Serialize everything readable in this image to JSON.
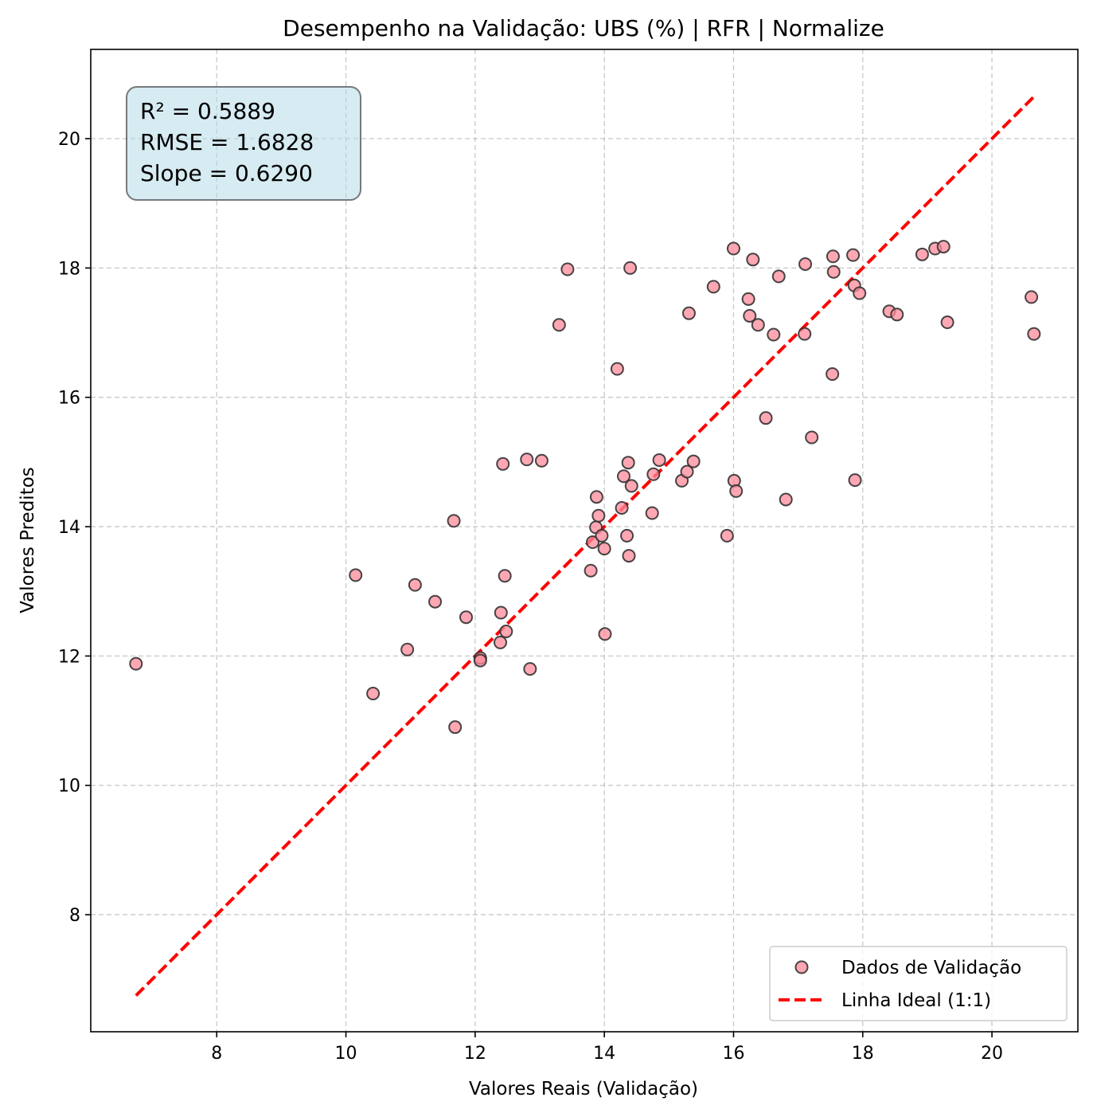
{
  "chart_data": {
    "type": "scatter",
    "title": "Desempenho na Validação: UBS (%) | RFR | Normalize",
    "xlabel": "Valores Reais (Validação)",
    "ylabel": "Valores Preditos",
    "xlim": [
      6.05,
      21.33
    ],
    "ylim": [
      6.19,
      21.38
    ],
    "xticks": [
      8,
      10,
      12,
      14,
      16,
      18,
      20
    ],
    "yticks": [
      8,
      10,
      12,
      14,
      16,
      18,
      20
    ],
    "grid": true,
    "legend_position": "lower-right",
    "stats_box": {
      "lines": [
        "R² = 0.5889",
        "RMSE = 1.6828",
        "Slope = 0.6290"
      ],
      "fill_color": "#add8e6"
    },
    "series": [
      {
        "name": "Dados de Validação",
        "kind": "scatter",
        "color": "#ff8a9a",
        "edge_color": "#333333",
        "points": [
          [
            6.75,
            11.88
          ],
          [
            10.15,
            13.25
          ],
          [
            10.42,
            11.42
          ],
          [
            10.95,
            12.1
          ],
          [
            11.07,
            13.1
          ],
          [
            11.38,
            12.84
          ],
          [
            11.67,
            14.09
          ],
          [
            11.69,
            10.9
          ],
          [
            11.86,
            12.6
          ],
          [
            12.08,
            11.97
          ],
          [
            12.08,
            11.93
          ],
          [
            12.39,
            12.21
          ],
          [
            12.4,
            12.67
          ],
          [
            12.43,
            14.97
          ],
          [
            12.46,
            13.24
          ],
          [
            12.48,
            12.38
          ],
          [
            12.8,
            15.04
          ],
          [
            12.85,
            11.8
          ],
          [
            13.03,
            15.02
          ],
          [
            13.3,
            17.12
          ],
          [
            13.43,
            17.98
          ],
          [
            13.79,
            13.32
          ],
          [
            13.82,
            13.76
          ],
          [
            13.87,
            13.99
          ],
          [
            13.88,
            14.46
          ],
          [
            13.91,
            14.17
          ],
          [
            13.96,
            13.86
          ],
          [
            14.0,
            13.66
          ],
          [
            14.01,
            12.34
          ],
          [
            14.2,
            16.44
          ],
          [
            14.27,
            14.29
          ],
          [
            14.3,
            14.78
          ],
          [
            14.35,
            13.86
          ],
          [
            14.37,
            14.99
          ],
          [
            14.38,
            13.55
          ],
          [
            14.4,
            18.0
          ],
          [
            14.42,
            14.63
          ],
          [
            14.74,
            14.21
          ],
          [
            14.76,
            14.81
          ],
          [
            14.85,
            15.03
          ],
          [
            15.2,
            14.71
          ],
          [
            15.28,
            14.85
          ],
          [
            15.31,
            17.3
          ],
          [
            15.38,
            15.01
          ],
          [
            15.69,
            17.71
          ],
          [
            15.9,
            13.86
          ],
          [
            16.0,
            18.3
          ],
          [
            16.01,
            14.71
          ],
          [
            16.04,
            14.55
          ],
          [
            16.23,
            17.52
          ],
          [
            16.25,
            17.26
          ],
          [
            16.3,
            18.13
          ],
          [
            16.38,
            17.12
          ],
          [
            16.5,
            15.68
          ],
          [
            16.62,
            16.97
          ],
          [
            16.7,
            17.87
          ],
          [
            16.81,
            14.42
          ],
          [
            17.1,
            16.98
          ],
          [
            17.11,
            18.06
          ],
          [
            17.21,
            15.38
          ],
          [
            17.53,
            16.36
          ],
          [
            17.54,
            18.18
          ],
          [
            17.55,
            17.94
          ],
          [
            17.85,
            18.2
          ],
          [
            17.87,
            17.73
          ],
          [
            17.88,
            14.72
          ],
          [
            17.95,
            17.61
          ],
          [
            18.41,
            17.33
          ],
          [
            18.53,
            17.28
          ],
          [
            18.92,
            18.21
          ],
          [
            19.12,
            18.3
          ],
          [
            19.25,
            18.33
          ],
          [
            19.31,
            17.16
          ],
          [
            20.61,
            17.55
          ],
          [
            20.65,
            16.98
          ]
        ]
      },
      {
        "name": "Linha Ideal (1:1)",
        "kind": "line",
        "color": "#ff0000",
        "style": "dashed",
        "x": [
          6.75,
          20.65
        ],
        "y": [
          6.75,
          20.65
        ]
      }
    ]
  }
}
